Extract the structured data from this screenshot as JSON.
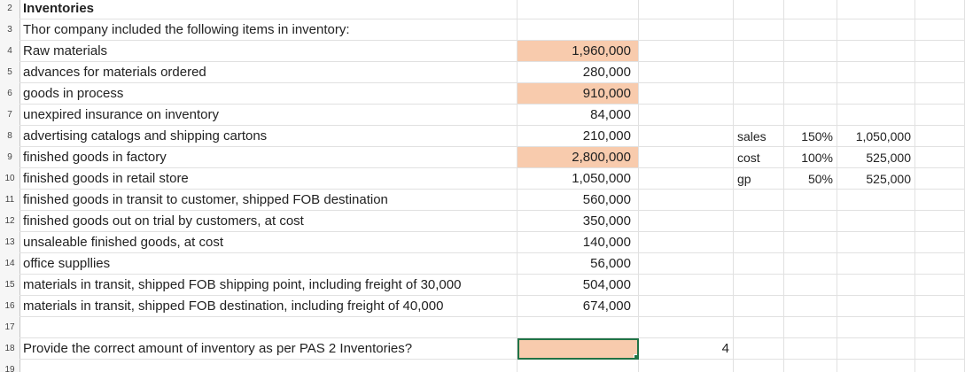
{
  "rows": [
    {
      "num": "2",
      "a": "Inventories",
      "b": "",
      "c": "",
      "d": "",
      "e": "",
      "f": "",
      "bold": true
    },
    {
      "num": "3",
      "a": "Thor company included the following items in inventory:",
      "b": "",
      "c": "",
      "d": "",
      "e": "",
      "f": ""
    },
    {
      "num": "4",
      "a": "Raw materials",
      "b": "1,960,000",
      "c": "",
      "d": "",
      "e": "",
      "f": "",
      "highlight": true
    },
    {
      "num": "5",
      "a": "advances for materials ordered",
      "b": "280,000",
      "c": "",
      "d": "",
      "e": "",
      "f": ""
    },
    {
      "num": "6",
      "a": "goods in process",
      "b": "910,000",
      "c": "",
      "d": "",
      "e": "",
      "f": "",
      "highlight": true
    },
    {
      "num": "7",
      "a": "unexpired insurance on inventory",
      "b": "84,000",
      "c": "",
      "d": "",
      "e": "",
      "f": ""
    },
    {
      "num": "8",
      "a": "advertising catalogs and shipping cartons",
      "b": "210,000",
      "c": "",
      "d": "sales",
      "e": "150%",
      "f": "1,050,000"
    },
    {
      "num": "9",
      "a": "finished goods in factory",
      "b": "2,800,000",
      "c": "",
      "d": "cost",
      "e": "100%",
      "f": "525,000",
      "highlight": true
    },
    {
      "num": "10",
      "a": "finished goods in retail store",
      "b": "1,050,000",
      "c": "",
      "d": "gp",
      "e": "50%",
      "f": "525,000"
    },
    {
      "num": "11",
      "a": "finished goods in transit to customer, shipped FOB destination",
      "b": "560,000",
      "c": "",
      "d": "",
      "e": "",
      "f": ""
    },
    {
      "num": "12",
      "a": "finished goods out on trial by customers, at cost",
      "b": "350,000",
      "c": "",
      "d": "",
      "e": "",
      "f": ""
    },
    {
      "num": "13",
      "a": "unsaleable finished goods, at cost",
      "b": "140,000",
      "c": "",
      "d": "",
      "e": "",
      "f": ""
    },
    {
      "num": "14",
      "a": "office suppllies",
      "b": "56,000",
      "c": "",
      "d": "",
      "e": "",
      "f": ""
    },
    {
      "num": "15",
      "a": "materials in transit, shipped FOB shipping point, including freight of 30,000",
      "b": "504,000",
      "c": "",
      "d": "",
      "e": "",
      "f": ""
    },
    {
      "num": "16",
      "a": "materials in transit, shipped FOB destination, including freight of 40,000",
      "b": "674,000",
      "c": "",
      "d": "",
      "e": "",
      "f": ""
    },
    {
      "num": "17",
      "a": "",
      "b": "",
      "c": "",
      "d": "",
      "e": "",
      "f": ""
    },
    {
      "num": "18",
      "a": "Provide the correct amount of inventory as per PAS 2 Inventories?",
      "b": "",
      "c": "4",
      "d": "",
      "e": "",
      "f": "",
      "selected": true
    },
    {
      "num": "19",
      "a": "",
      "b": "",
      "c": "",
      "d": "",
      "e": "",
      "f": ""
    }
  ]
}
